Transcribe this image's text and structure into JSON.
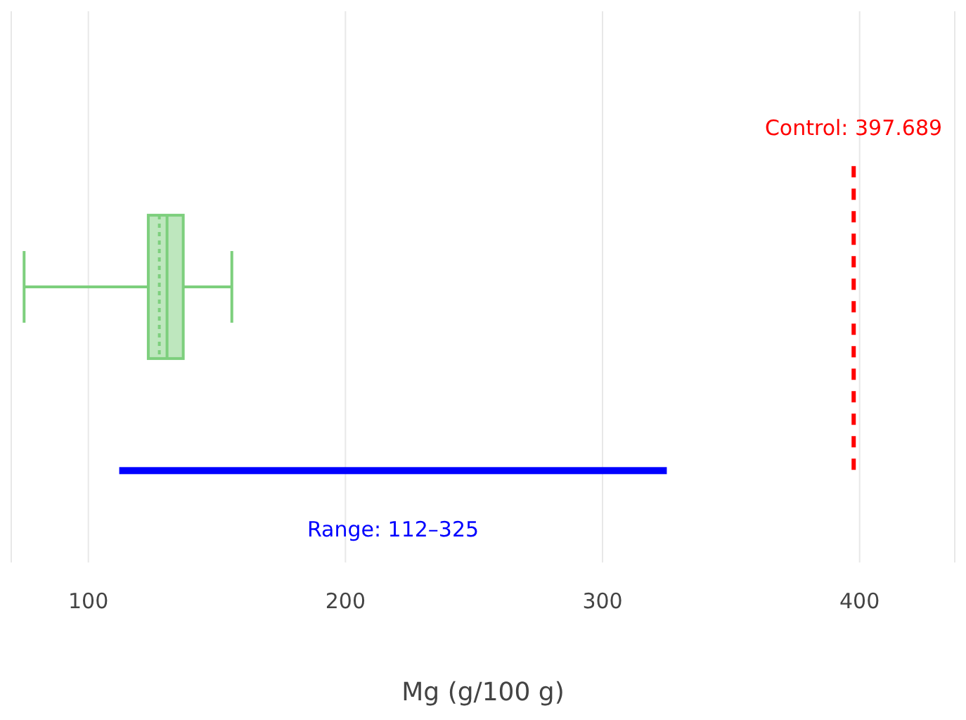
{
  "chart_data": {
    "type": "box",
    "orientation": "horizontal",
    "categories": [
      null,
      null,
      null
    ],
    "xlabel": "Mg (g/100 g)",
    "xlim": [
      70,
      437
    ],
    "xticks": [
      100,
      200,
      300,
      400
    ],
    "grid": "x",
    "series": [
      {
        "color": "#7dcf7d",
        "boxes": [
          null,
          {
            "low": 75,
            "q1": 123.3,
            "median": 130.6,
            "q3": 136.9,
            "high": 155.8,
            "mean": 127.6
          },
          null
        ]
      },
      {
        "type": "bar",
        "color": "#0000ff",
        "base": [
          null,
          null,
          112
        ],
        "values": [
          null,
          null,
          213
        ]
      }
    ],
    "annotations": [
      "Range: 112–325"
    ],
    "ref_lines": [
      {
        "axis": "x",
        "value": 397.689,
        "label": "Control: 397.689",
        "color": "#ff0000",
        "line_style": "dashed"
      }
    ]
  }
}
